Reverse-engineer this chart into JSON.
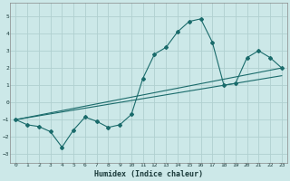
{
  "xlabel": "Humidex (Indice chaleur)",
  "ylabel": "",
  "xlim": [
    -0.5,
    23.5
  ],
  "ylim": [
    -3.5,
    5.8
  ],
  "xticks": [
    0,
    1,
    2,
    3,
    4,
    5,
    6,
    7,
    8,
    9,
    10,
    11,
    12,
    13,
    14,
    15,
    16,
    17,
    18,
    19,
    20,
    21,
    22,
    23
  ],
  "yticks": [
    -3,
    -2,
    -1,
    0,
    1,
    2,
    3,
    4,
    5
  ],
  "bg_color": "#cce8e8",
  "grid_color": "#b0d0d0",
  "line_color": "#1a6b6b",
  "line1_x": [
    0,
    1,
    2,
    3,
    4,
    5,
    6,
    7,
    8,
    9,
    10,
    11,
    12,
    13,
    14,
    15,
    16,
    17,
    18,
    19,
    20,
    21,
    22,
    23
  ],
  "line1_y": [
    -1.0,
    -1.3,
    -1.4,
    -1.7,
    -2.6,
    -1.6,
    -0.85,
    -1.1,
    -1.45,
    -1.3,
    -0.7,
    1.4,
    2.8,
    3.2,
    4.1,
    4.7,
    4.85,
    3.5,
    1.0,
    1.1,
    2.6,
    3.0,
    2.6,
    2.0
  ],
  "line2_x": [
    0,
    23
  ],
  "line2_y": [
    -1.0,
    2.0
  ],
  "line3_x": [
    0,
    23
  ],
  "line3_y": [
    -1.0,
    1.55
  ],
  "xlabel_fontsize": 6,
  "tick_fontsize": 4.5
}
